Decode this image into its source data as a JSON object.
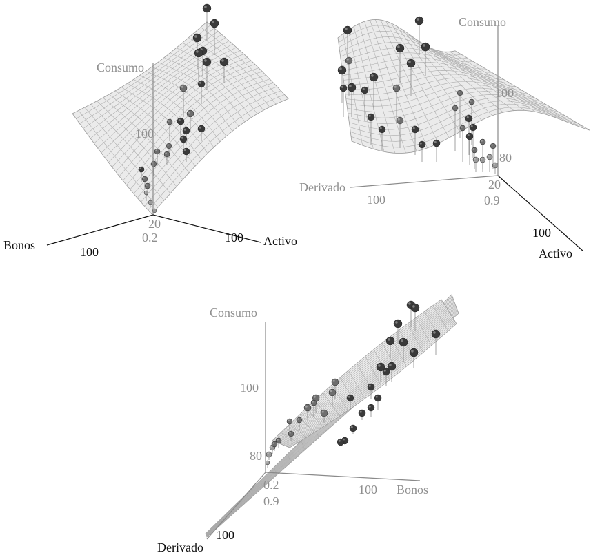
{
  "colors": {
    "surface": "#e7e7e7",
    "mesh": "#a9a9a9",
    "point_dark": "#3a3a3a",
    "point_mid": "#6e6e6e",
    "point_light": "#9a9a9a",
    "label_grey": "#8f8f8f",
    "label_dark": "#111111"
  },
  "chart_data": [
    {
      "type": "scatter",
      "surface": true,
      "view": "top-left",
      "axes": {
        "z": {
          "label": "Consumo",
          "ticks": [
            "100"
          ]
        },
        "x": {
          "label": "Activo",
          "ticks": [
            "20",
            "100"
          ]
        },
        "y": {
          "label": "Bonos",
          "ticks": [
            "0.2",
            "100"
          ]
        }
      }
    },
    {
      "type": "scatter",
      "surface": true,
      "view": "top-right",
      "axes": {
        "z": {
          "label": "Consumo",
          "ticks": [
            "100",
            "80"
          ]
        },
        "x": {
          "label": "Derivado",
          "ticks": [
            "100",
            "0.9"
          ]
        },
        "y": {
          "label": "Activo",
          "ticks": [
            "20",
            "100"
          ]
        }
      }
    },
    {
      "type": "scatter",
      "surface": true,
      "view": "bottom",
      "axes": {
        "z": {
          "label": "Consumo",
          "ticks": [
            "100",
            "80"
          ]
        },
        "x": {
          "label": "Bonos",
          "ticks": [
            "0.2",
            "100"
          ]
        },
        "y": {
          "label": "Derivado",
          "ticks": [
            "0.9",
            "100"
          ]
        }
      }
    }
  ]
}
